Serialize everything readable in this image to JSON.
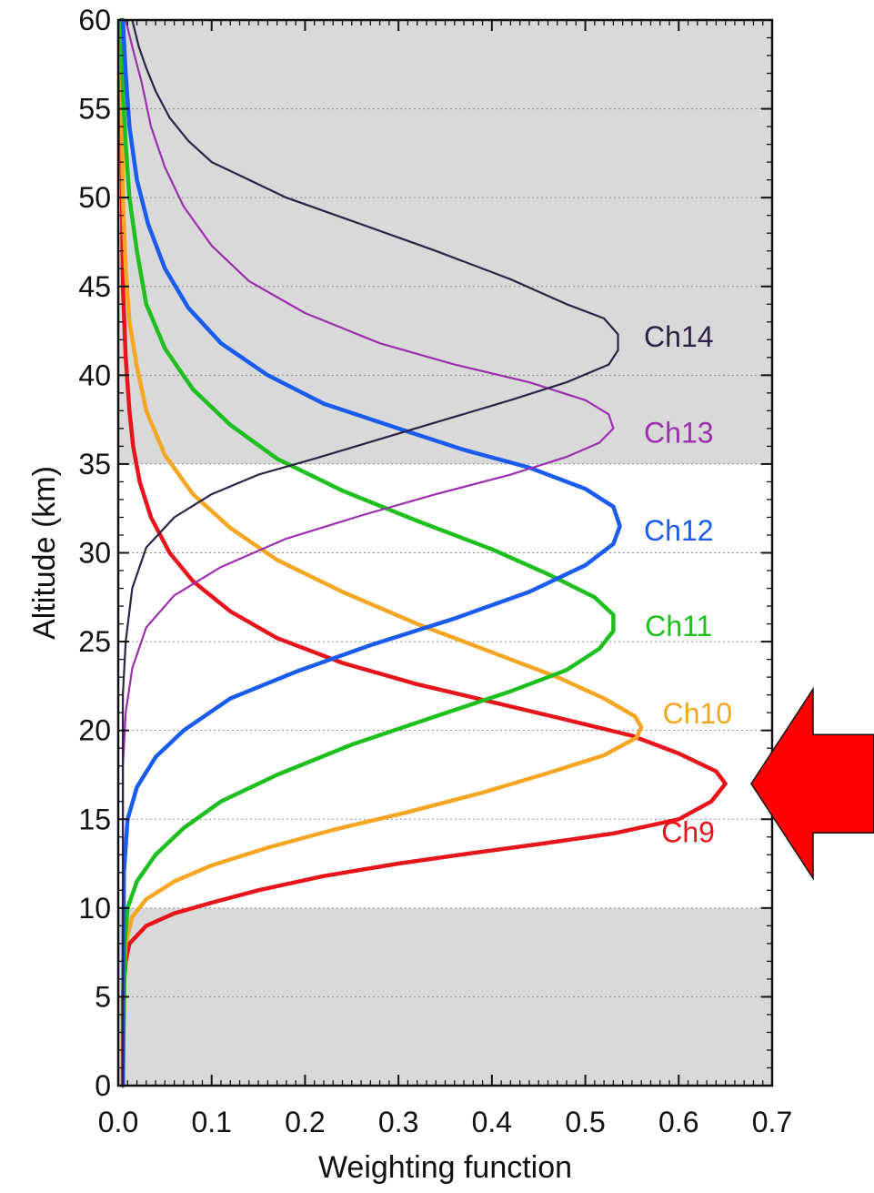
{
  "chart_data": {
    "type": "line",
    "title": "",
    "xlabel": "Weighting function",
    "ylabel": "Altitude (km)",
    "xlim": [
      0.0,
      0.7
    ],
    "ylim": [
      0,
      60
    ],
    "x_ticks": [
      "0.0",
      "0.1",
      "0.2",
      "0.3",
      "0.4",
      "0.5",
      "0.6",
      "0.7"
    ],
    "y_ticks": [
      "0",
      "5",
      "10",
      "15",
      "20",
      "25",
      "30",
      "35",
      "40",
      "45",
      "50",
      "55",
      "60"
    ],
    "grid": "horizontal dotted lines at y ticks",
    "shaded_altitude_bands": [
      [
        0,
        10
      ],
      [
        35,
        60
      ]
    ],
    "shade_color": "#d9d9d9",
    "highlight_arrow": {
      "points_to": "Ch9",
      "altitude": 17,
      "color": "#ff0000"
    },
    "series": [
      {
        "name": "Ch9",
        "color": "#e8141c",
        "label_at": [
          0.61,
          13.7
        ],
        "points": [
          [
            0.005,
            0
          ],
          [
            0.005,
            5
          ],
          [
            0.008,
            7
          ],
          [
            0.012,
            8
          ],
          [
            0.03,
            9
          ],
          [
            0.06,
            9.7
          ],
          [
            0.1,
            10.3
          ],
          [
            0.15,
            11
          ],
          [
            0.22,
            11.8
          ],
          [
            0.3,
            12.5
          ],
          [
            0.38,
            13.1
          ],
          [
            0.45,
            13.6
          ],
          [
            0.53,
            14.2
          ],
          [
            0.6,
            15
          ],
          [
            0.635,
            16
          ],
          [
            0.65,
            17
          ],
          [
            0.64,
            17.7
          ],
          [
            0.6,
            18.7
          ],
          [
            0.55,
            19.7
          ],
          [
            0.48,
            20.6
          ],
          [
            0.4,
            21.6
          ],
          [
            0.32,
            22.6
          ],
          [
            0.24,
            23.8
          ],
          [
            0.17,
            25.2
          ],
          [
            0.12,
            26.7
          ],
          [
            0.08,
            28.4
          ],
          [
            0.055,
            30
          ],
          [
            0.035,
            32
          ],
          [
            0.023,
            34
          ],
          [
            0.016,
            36
          ],
          [
            0.012,
            38
          ],
          [
            0.008,
            41
          ],
          [
            0.005,
            45
          ],
          [
            0.004,
            50
          ],
          [
            0.003,
            55
          ],
          [
            0.003,
            60
          ]
        ]
      },
      {
        "name": "Ch10",
        "color": "#f5a623",
        "label_at": [
          0.62,
          20.4
        ],
        "points": [
          [
            0.005,
            0
          ],
          [
            0.006,
            6
          ],
          [
            0.008,
            8
          ],
          [
            0.015,
            9.5
          ],
          [
            0.03,
            10.5
          ],
          [
            0.06,
            11.5
          ],
          [
            0.1,
            12.4
          ],
          [
            0.16,
            13.4
          ],
          [
            0.23,
            14.4
          ],
          [
            0.31,
            15.4
          ],
          [
            0.39,
            16.5
          ],
          [
            0.46,
            17.6
          ],
          [
            0.52,
            18.6
          ],
          [
            0.555,
            19.6
          ],
          [
            0.56,
            20.2
          ],
          [
            0.553,
            20.8
          ],
          [
            0.52,
            21.8
          ],
          [
            0.47,
            23
          ],
          [
            0.4,
            24.4
          ],
          [
            0.32,
            26
          ],
          [
            0.24,
            27.8
          ],
          [
            0.17,
            29.6
          ],
          [
            0.12,
            31.4
          ],
          [
            0.08,
            33.3
          ],
          [
            0.05,
            35.5
          ],
          [
            0.03,
            38
          ],
          [
            0.02,
            40.5
          ],
          [
            0.012,
            43
          ],
          [
            0.008,
            46
          ],
          [
            0.005,
            50
          ],
          [
            0.004,
            55
          ],
          [
            0.003,
            60
          ]
        ]
      },
      {
        "name": "Ch11",
        "color": "#1fbf1f",
        "label_at": [
          0.6,
          25.3
        ],
        "points": [
          [
            0.005,
            0
          ],
          [
            0.007,
            8
          ],
          [
            0.01,
            10
          ],
          [
            0.02,
            11.5
          ],
          [
            0.04,
            13
          ],
          [
            0.07,
            14.5
          ],
          [
            0.11,
            16
          ],
          [
            0.17,
            17.5
          ],
          [
            0.25,
            19.2
          ],
          [
            0.34,
            20.8
          ],
          [
            0.42,
            22.2
          ],
          [
            0.48,
            23.4
          ],
          [
            0.515,
            24.6
          ],
          [
            0.53,
            25.6
          ],
          [
            0.53,
            26.5
          ],
          [
            0.51,
            27.5
          ],
          [
            0.46,
            28.8
          ],
          [
            0.4,
            30.2
          ],
          [
            0.32,
            31.8
          ],
          [
            0.24,
            33.5
          ],
          [
            0.17,
            35.3
          ],
          [
            0.12,
            37.2
          ],
          [
            0.08,
            39.2
          ],
          [
            0.05,
            41.5
          ],
          [
            0.03,
            44
          ],
          [
            0.02,
            47
          ],
          [
            0.012,
            50
          ],
          [
            0.008,
            53
          ],
          [
            0.005,
            56
          ],
          [
            0.003,
            60
          ]
        ]
      },
      {
        "name": "Ch12",
        "color": "#1a5cf0",
        "label_at": [
          0.6,
          30.7
        ],
        "points": [
          [
            0.005,
            0
          ],
          [
            0.006,
            12
          ],
          [
            0.01,
            15
          ],
          [
            0.02,
            16.8
          ],
          [
            0.04,
            18.5
          ],
          [
            0.07,
            20
          ],
          [
            0.12,
            21.8
          ],
          [
            0.19,
            23.3
          ],
          [
            0.27,
            24.8
          ],
          [
            0.36,
            26.3
          ],
          [
            0.44,
            27.8
          ],
          [
            0.5,
            29.3
          ],
          [
            0.53,
            30.5
          ],
          [
            0.537,
            31.5
          ],
          [
            0.53,
            32.6
          ],
          [
            0.5,
            33.6
          ],
          [
            0.44,
            34.8
          ],
          [
            0.37,
            35.8
          ],
          [
            0.3,
            37
          ],
          [
            0.22,
            38.4
          ],
          [
            0.16,
            40
          ],
          [
            0.11,
            41.8
          ],
          [
            0.075,
            43.8
          ],
          [
            0.05,
            46
          ],
          [
            0.032,
            48.5
          ],
          [
            0.02,
            51
          ],
          [
            0.012,
            54
          ],
          [
            0.008,
            57
          ],
          [
            0.005,
            60
          ]
        ]
      },
      {
        "name": "Ch13",
        "color": "#9b2fae",
        "label_at": [
          0.6,
          36.2
        ],
        "points": [
          [
            0.005,
            0
          ],
          [
            0.005,
            18
          ],
          [
            0.008,
            21
          ],
          [
            0.015,
            23.5
          ],
          [
            0.03,
            25.8
          ],
          [
            0.06,
            27.6
          ],
          [
            0.11,
            29.2
          ],
          [
            0.18,
            30.8
          ],
          [
            0.26,
            32.1
          ],
          [
            0.34,
            33.3
          ],
          [
            0.42,
            34.4
          ],
          [
            0.48,
            35.4
          ],
          [
            0.515,
            36.2
          ],
          [
            0.53,
            37
          ],
          [
            0.525,
            37.8
          ],
          [
            0.5,
            38.6
          ],
          [
            0.44,
            39.6
          ],
          [
            0.36,
            40.6
          ],
          [
            0.28,
            41.8
          ],
          [
            0.2,
            43.5
          ],
          [
            0.14,
            45.3
          ],
          [
            0.1,
            47.3
          ],
          [
            0.07,
            49.5
          ],
          [
            0.05,
            51.7
          ],
          [
            0.035,
            54
          ],
          [
            0.025,
            56.5
          ],
          [
            0.015,
            58.5
          ],
          [
            0.008,
            60
          ]
        ]
      },
      {
        "name": "Ch14",
        "color": "#2d2346",
        "label_at": [
          0.6,
          41.6
        ],
        "points": [
          [
            0.005,
            0
          ],
          [
            0.005,
            22
          ],
          [
            0.008,
            25
          ],
          [
            0.015,
            28
          ],
          [
            0.03,
            30.3
          ],
          [
            0.06,
            32
          ],
          [
            0.1,
            33.3
          ],
          [
            0.15,
            34.4
          ],
          [
            0.21,
            35.3
          ],
          [
            0.28,
            36.4
          ],
          [
            0.35,
            37.5
          ],
          [
            0.42,
            38.6
          ],
          [
            0.48,
            39.6
          ],
          [
            0.525,
            40.6
          ],
          [
            0.535,
            41.4
          ],
          [
            0.535,
            42.3
          ],
          [
            0.52,
            43.2
          ],
          [
            0.48,
            44
          ],
          [
            0.42,
            45.4
          ],
          [
            0.34,
            47
          ],
          [
            0.26,
            48.5
          ],
          [
            0.18,
            50
          ],
          [
            0.14,
            51
          ],
          [
            0.1,
            52
          ],
          [
            0.075,
            53.2
          ],
          [
            0.055,
            54.5
          ],
          [
            0.04,
            56
          ],
          [
            0.03,
            57.3
          ],
          [
            0.022,
            58.5
          ],
          [
            0.015,
            60
          ]
        ]
      }
    ]
  }
}
